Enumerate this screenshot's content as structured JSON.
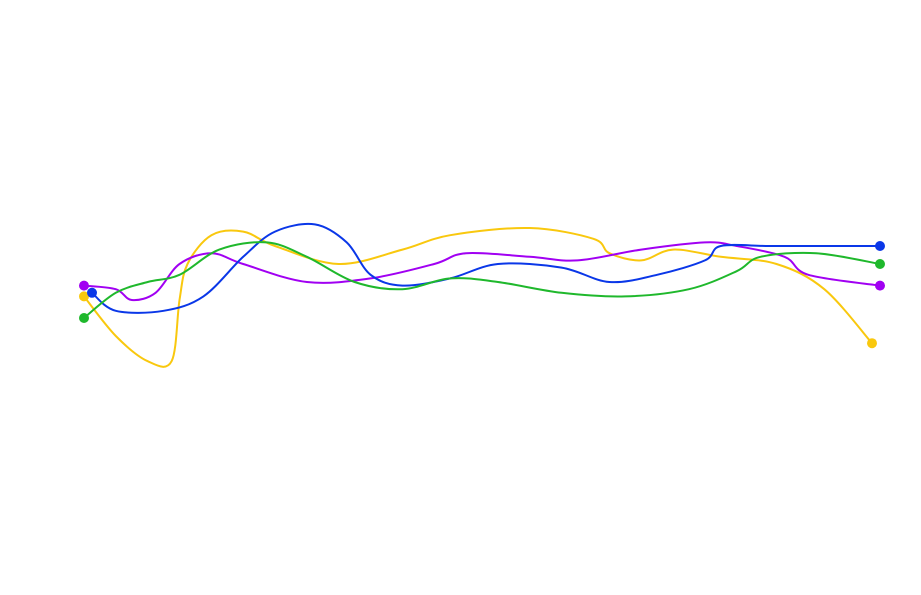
{
  "chart_data": {
    "type": "line",
    "grid": false,
    "legend": "none",
    "curve": "smooth",
    "xlim": [
      0,
      100
    ],
    "ylim": [
      0,
      100
    ],
    "series": [
      {
        "color": "#f9c80e",
        "points": [
          [
            0,
            51
          ],
          [
            4,
            40
          ],
          [
            8,
            33
          ],
          [
            11,
            33
          ],
          [
            12,
            50
          ],
          [
            13,
            60
          ],
          [
            16,
            68
          ],
          [
            20,
            69
          ],
          [
            24,
            65
          ],
          [
            32,
            60
          ],
          [
            40,
            64
          ],
          [
            46,
            68
          ],
          [
            56,
            70
          ],
          [
            64,
            67
          ],
          [
            66,
            63
          ],
          [
            70,
            61
          ],
          [
            74,
            64
          ],
          [
            80,
            62
          ],
          [
            87,
            60
          ],
          [
            93,
            53
          ],
          [
            99,
            38
          ]
        ]
      },
      {
        "color": "#a100f2",
        "points": [
          [
            0,
            54
          ],
          [
            4,
            53
          ],
          [
            6,
            50
          ],
          [
            9,
            52
          ],
          [
            12,
            60
          ],
          [
            16,
            63
          ],
          [
            20,
            60
          ],
          [
            28,
            55
          ],
          [
            36,
            56
          ],
          [
            44,
            60
          ],
          [
            48,
            63
          ],
          [
            56,
            62
          ],
          [
            62,
            61
          ],
          [
            70,
            64
          ],
          [
            78,
            66
          ],
          [
            82,
            65
          ],
          [
            88,
            62
          ],
          [
            91,
            57
          ],
          [
            100,
            54
          ]
        ]
      },
      {
        "color": "#0a37e8",
        "points": [
          [
            1,
            52
          ],
          [
            4,
            47
          ],
          [
            10,
            47
          ],
          [
            15,
            51
          ],
          [
            20,
            62
          ],
          [
            24,
            69
          ],
          [
            29,
            71
          ],
          [
            33,
            66
          ],
          [
            36,
            57
          ],
          [
            40,
            54
          ],
          [
            46,
            56
          ],
          [
            52,
            60
          ],
          [
            60,
            59
          ],
          [
            66,
            55
          ],
          [
            72,
            57
          ],
          [
            78,
            61
          ],
          [
            80,
            65
          ],
          [
            86,
            65
          ],
          [
            92,
            65
          ],
          [
            100,
            65
          ]
        ]
      },
      {
        "color": "#1fb82c",
        "points": [
          [
            0,
            45
          ],
          [
            4,
            52
          ],
          [
            8,
            55
          ],
          [
            12,
            57
          ],
          [
            17,
            64
          ],
          [
            23,
            66
          ],
          [
            28,
            62
          ],
          [
            34,
            55
          ],
          [
            40,
            53
          ],
          [
            46,
            56
          ],
          [
            52,
            55
          ],
          [
            60,
            52
          ],
          [
            68,
            51
          ],
          [
            76,
            53
          ],
          [
            82,
            58
          ],
          [
            85,
            62
          ],
          [
            92,
            63
          ],
          [
            100,
            60
          ]
        ]
      }
    ]
  }
}
